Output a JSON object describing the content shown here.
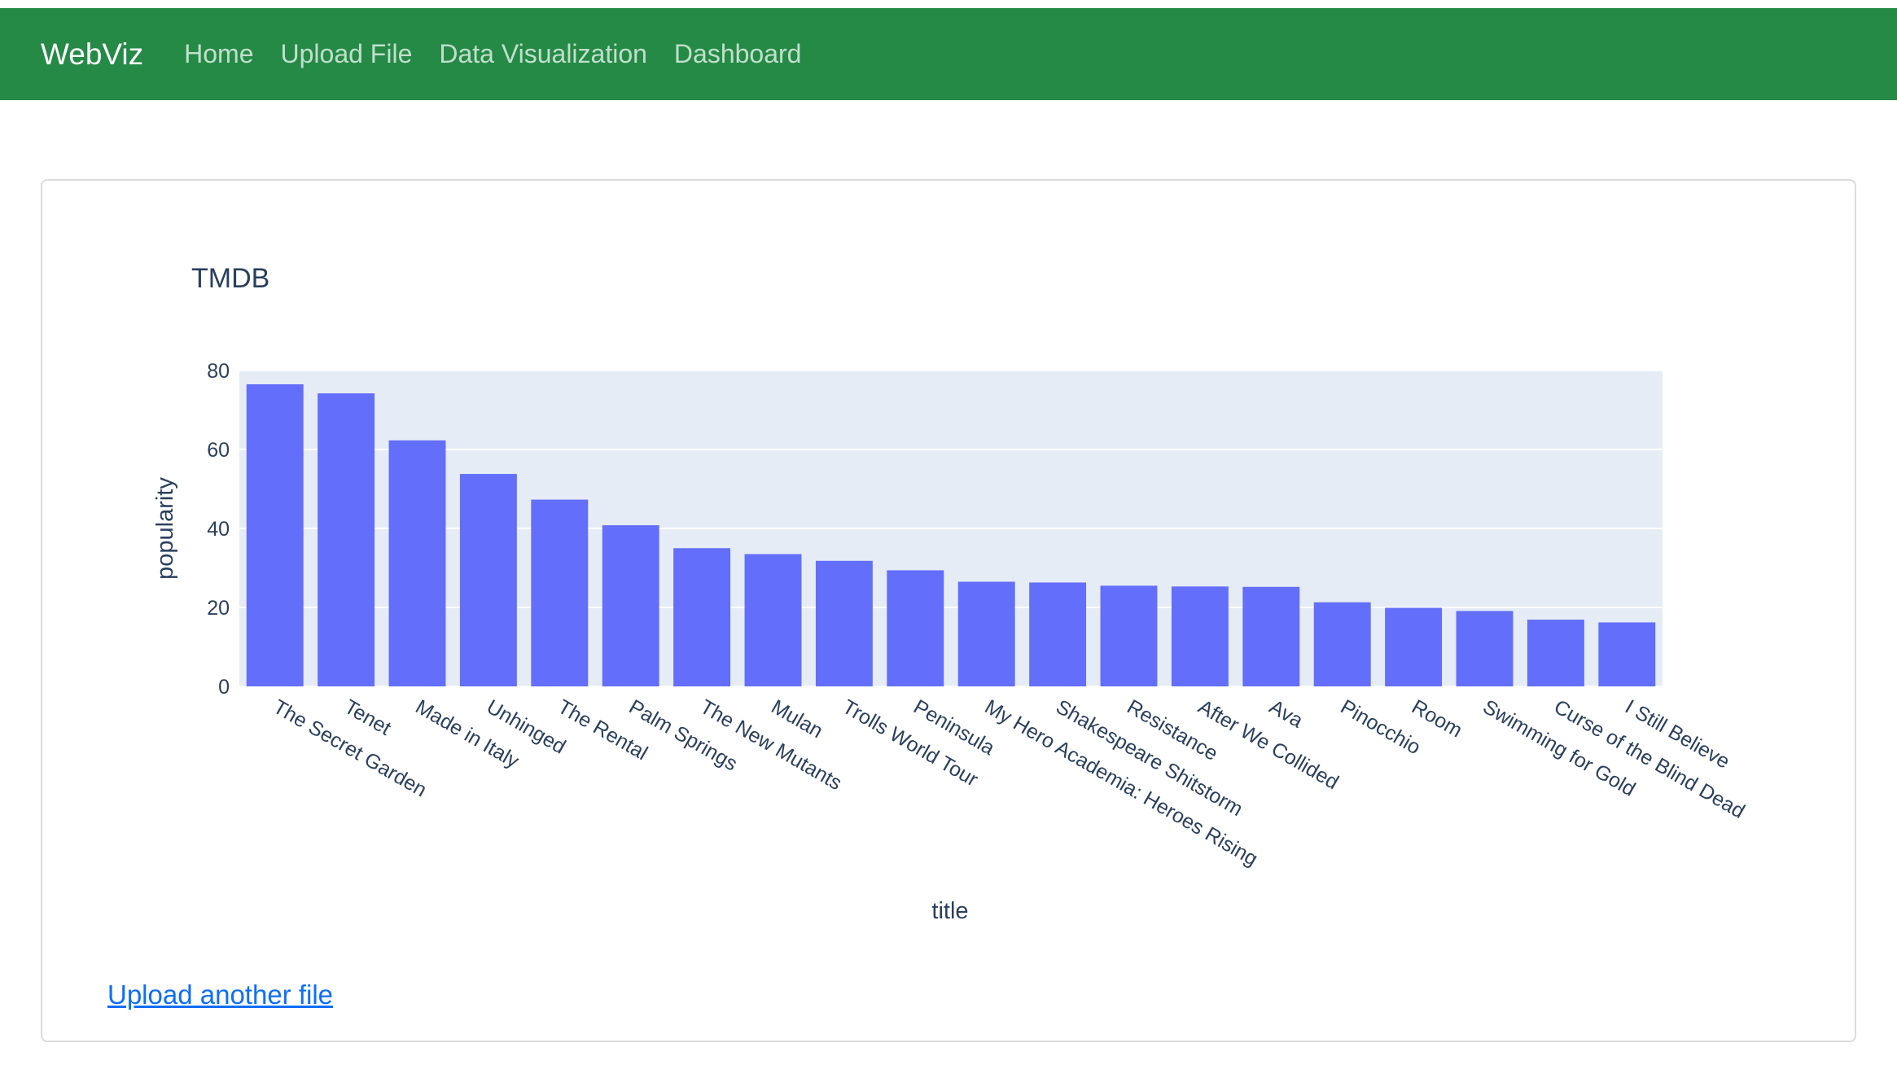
{
  "navbar": {
    "brand": "WebViz",
    "links": [
      "Home",
      "Upload File",
      "Data Visualization",
      "Dashboard"
    ]
  },
  "upload_link": "Upload another file",
  "colors": {
    "navbar_bg": "#248a46",
    "bar": "#636efa",
    "plot_bg": "#e5ecf6",
    "text": "#2a3f5f",
    "link": "#0d6efd"
  },
  "chart_data": {
    "type": "bar",
    "title": "TMDB",
    "xlabel": "title",
    "ylabel": "popularity",
    "ylim": [
      0,
      80
    ],
    "yticks": [
      0,
      20,
      40,
      60,
      80
    ],
    "categories": [
      "The Secret Garden",
      "Tenet",
      "Made in Italy",
      "Unhinged",
      "The Rental",
      "Palm Springs",
      "The New Mutants",
      "Mulan",
      "Trolls World Tour",
      "Peninsula",
      "My Hero Academia: Heroes Rising",
      "Shakespeare Shitstorm",
      "Resistance",
      "After We Collided",
      "Ava",
      "Pinocchio",
      "Room",
      "Swimming for Gold",
      "Curse of the Blind Dead",
      "I Still Believe"
    ],
    "values": [
      76.5,
      74.2,
      62.3,
      53.8,
      47.3,
      40.8,
      35.0,
      33.5,
      31.8,
      29.4,
      26.5,
      26.3,
      25.5,
      25.3,
      25.2,
      21.3,
      19.9,
      19.1,
      16.9,
      16.2
    ]
  }
}
